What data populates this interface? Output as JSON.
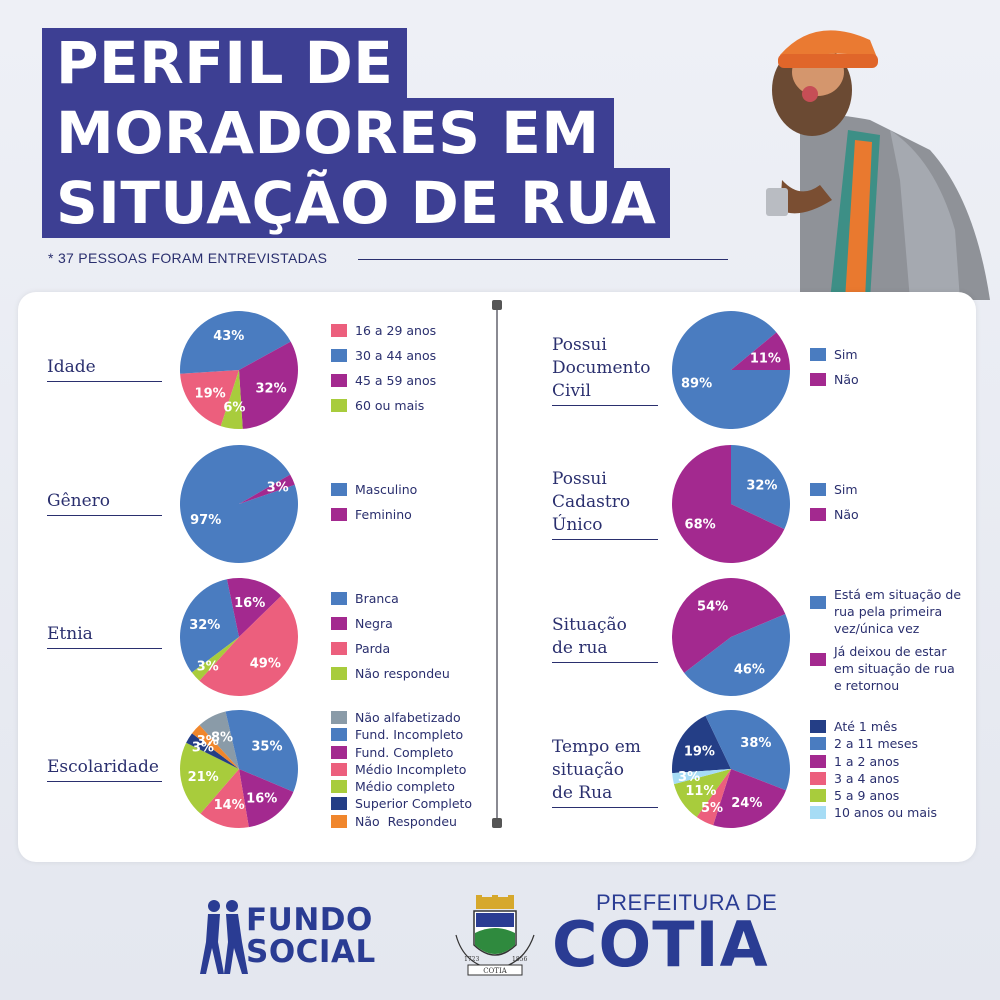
{
  "header": {
    "title_line1": "PERFIL DE",
    "title_line2": "MORADORES EM",
    "title_line3": "SITUAÇÃO DE RUA",
    "subtitle": "* 37 PESSOAS FORAM ENTREVISTADAS"
  },
  "colors": {
    "blue": "#4a7cc0",
    "purple": "#a3298f",
    "pink": "#ec5f7d",
    "green": "#a8cc3c",
    "gray": "#8a9ba8",
    "orange": "#f0862c",
    "navy": "#243e86",
    "lightblue": "#a6dcf5"
  },
  "chart_data": [
    {
      "type": "pie",
      "title": "Idade",
      "categories": [
        "16 a 29 anos",
        "30 a 44 anos",
        "45 a 59 anos",
        "60 ou mais"
      ],
      "values": [
        19,
        43,
        32,
        6
      ],
      "labels": [
        "19%",
        "43%",
        "32%",
        "6%"
      ],
      "colors": [
        "#ec5f7d",
        "#4a7cc0",
        "#a3298f",
        "#a8cc3c"
      ]
    },
    {
      "type": "pie",
      "title": "Gênero",
      "categories": [
        "Masculino",
        "Feminino"
      ],
      "values": [
        97,
        3
      ],
      "labels": [
        "97%",
        "3%"
      ],
      "colors": [
        "#4a7cc0",
        "#a3298f"
      ]
    },
    {
      "type": "pie",
      "title": "Etnia",
      "categories": [
        "Branca",
        "Negra",
        "Parda",
        "Não respondeu"
      ],
      "values": [
        32,
        16,
        49,
        3
      ],
      "labels": [
        "32%",
        "16%",
        "49%",
        "3%"
      ],
      "colors": [
        "#4a7cc0",
        "#a3298f",
        "#ec5f7d",
        "#a8cc3c"
      ]
    },
    {
      "type": "pie",
      "title": "Escolaridade",
      "categories": [
        "Não alfabetizado",
        "Fund. Incompleto",
        "Fund. Completo",
        "Médio Incompleto",
        "Médio completo",
        "Superior Completo",
        "Não  Respondeu"
      ],
      "values": [
        8,
        35,
        16,
        14,
        21,
        3,
        3
      ],
      "labels": [
        "8%",
        "35%",
        "16%",
        "14%",
        "21%",
        "3%",
        "3%"
      ],
      "colors": [
        "#8a9ba8",
        "#4a7cc0",
        "#a3298f",
        "#ec5f7d",
        "#a8cc3c",
        "#243e86",
        "#f0862c"
      ]
    },
    {
      "type": "pie",
      "title": "Possui Documento Civil",
      "categories": [
        "Sim",
        "Não"
      ],
      "values": [
        89,
        11
      ],
      "labels": [
        "89%",
        "11%"
      ],
      "colors": [
        "#4a7cc0",
        "#a3298f"
      ]
    },
    {
      "type": "pie",
      "title": "Possui Cadastro Único",
      "categories": [
        "Sim",
        "Não"
      ],
      "values": [
        32,
        68
      ],
      "labels": [
        "32%",
        "68%"
      ],
      "colors": [
        "#4a7cc0",
        "#a3298f"
      ]
    },
    {
      "type": "pie",
      "title": "Situação de rua",
      "categories": [
        "Está em situação de rua pela primeira vez/única vez",
        "Já deixou de estar em situação de rua e retornou"
      ],
      "values": [
        46,
        54
      ],
      "labels": [
        "46%",
        "54%"
      ],
      "colors": [
        "#4a7cc0",
        "#a3298f"
      ]
    },
    {
      "type": "pie",
      "title": "Tempo em situação de Rua",
      "categories": [
        "Até 1 mês",
        "2 a 11 meses",
        "1 a 2 anos",
        "3 a 4 anos",
        "5 a 9 anos",
        "10 anos ou mais"
      ],
      "values": [
        19,
        38,
        24,
        5,
        11,
        3
      ],
      "labels": [
        "19%",
        "38%",
        "24%",
        "5%",
        "11%",
        "3%"
      ],
      "colors": [
        "#243e86",
        "#4a7cc0",
        "#a3298f",
        "#ec5f7d",
        "#a8cc3c",
        "#a6dcf5"
      ]
    }
  ],
  "chart_titles_display": [
    "Idade",
    "Gênero",
    "Etnia",
    "Escolaridade",
    "Possui\nDocumento\nCivil",
    "Possui\nCadastro\nÚnico",
    "Situação\nde rua",
    "Tempo em\nsituação\nde Rua"
  ],
  "legend_display": {
    "situacao": [
      "Está em situação de\nrua pela primeira\nvez/única vez",
      "Já deixou de estar\nem situação de rua\ne retornou"
    ]
  },
  "footer": {
    "fundo_social": "FUNDO\nSOCIAL",
    "prefeitura": "PREFEITURA DE",
    "cotia": "COTIA",
    "crest_text": "COTIA",
    "crest_year_left": "1723",
    "crest_year_right": "1856"
  }
}
